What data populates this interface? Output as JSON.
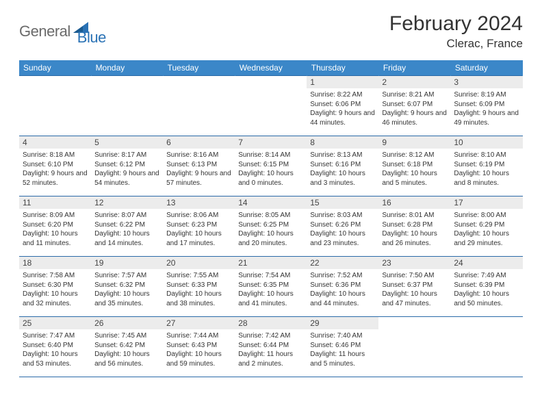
{
  "logo": {
    "text1": "General",
    "text2": "Blue"
  },
  "title": "February 2024",
  "location": "Clerac, France",
  "colors": {
    "header_bg": "#3b87c8",
    "header_text": "#ffffff",
    "border": "#2a6aa8",
    "daynum_bg": "#ececec",
    "logo_gray": "#6a6a6a",
    "logo_blue": "#2a72b5"
  },
  "weekdays": [
    "Sunday",
    "Monday",
    "Tuesday",
    "Wednesday",
    "Thursday",
    "Friday",
    "Saturday"
  ],
  "weeks": [
    [
      null,
      null,
      null,
      null,
      {
        "n": "1",
        "sr": "8:22 AM",
        "ss": "6:06 PM",
        "dl": "9 hours and 44 minutes."
      },
      {
        "n": "2",
        "sr": "8:21 AM",
        "ss": "6:07 PM",
        "dl": "9 hours and 46 minutes."
      },
      {
        "n": "3",
        "sr": "8:19 AM",
        "ss": "6:09 PM",
        "dl": "9 hours and 49 minutes."
      }
    ],
    [
      {
        "n": "4",
        "sr": "8:18 AM",
        "ss": "6:10 PM",
        "dl": "9 hours and 52 minutes."
      },
      {
        "n": "5",
        "sr": "8:17 AM",
        "ss": "6:12 PM",
        "dl": "9 hours and 54 minutes."
      },
      {
        "n": "6",
        "sr": "8:16 AM",
        "ss": "6:13 PM",
        "dl": "9 hours and 57 minutes."
      },
      {
        "n": "7",
        "sr": "8:14 AM",
        "ss": "6:15 PM",
        "dl": "10 hours and 0 minutes."
      },
      {
        "n": "8",
        "sr": "8:13 AM",
        "ss": "6:16 PM",
        "dl": "10 hours and 3 minutes."
      },
      {
        "n": "9",
        "sr": "8:12 AM",
        "ss": "6:18 PM",
        "dl": "10 hours and 5 minutes."
      },
      {
        "n": "10",
        "sr": "8:10 AM",
        "ss": "6:19 PM",
        "dl": "10 hours and 8 minutes."
      }
    ],
    [
      {
        "n": "11",
        "sr": "8:09 AM",
        "ss": "6:20 PM",
        "dl": "10 hours and 11 minutes."
      },
      {
        "n": "12",
        "sr": "8:07 AM",
        "ss": "6:22 PM",
        "dl": "10 hours and 14 minutes."
      },
      {
        "n": "13",
        "sr": "8:06 AM",
        "ss": "6:23 PM",
        "dl": "10 hours and 17 minutes."
      },
      {
        "n": "14",
        "sr": "8:05 AM",
        "ss": "6:25 PM",
        "dl": "10 hours and 20 minutes."
      },
      {
        "n": "15",
        "sr": "8:03 AM",
        "ss": "6:26 PM",
        "dl": "10 hours and 23 minutes."
      },
      {
        "n": "16",
        "sr": "8:01 AM",
        "ss": "6:28 PM",
        "dl": "10 hours and 26 minutes."
      },
      {
        "n": "17",
        "sr": "8:00 AM",
        "ss": "6:29 PM",
        "dl": "10 hours and 29 minutes."
      }
    ],
    [
      {
        "n": "18",
        "sr": "7:58 AM",
        "ss": "6:30 PM",
        "dl": "10 hours and 32 minutes."
      },
      {
        "n": "19",
        "sr": "7:57 AM",
        "ss": "6:32 PM",
        "dl": "10 hours and 35 minutes."
      },
      {
        "n": "20",
        "sr": "7:55 AM",
        "ss": "6:33 PM",
        "dl": "10 hours and 38 minutes."
      },
      {
        "n": "21",
        "sr": "7:54 AM",
        "ss": "6:35 PM",
        "dl": "10 hours and 41 minutes."
      },
      {
        "n": "22",
        "sr": "7:52 AM",
        "ss": "6:36 PM",
        "dl": "10 hours and 44 minutes."
      },
      {
        "n": "23",
        "sr": "7:50 AM",
        "ss": "6:37 PM",
        "dl": "10 hours and 47 minutes."
      },
      {
        "n": "24",
        "sr": "7:49 AM",
        "ss": "6:39 PM",
        "dl": "10 hours and 50 minutes."
      }
    ],
    [
      {
        "n": "25",
        "sr": "7:47 AM",
        "ss": "6:40 PM",
        "dl": "10 hours and 53 minutes."
      },
      {
        "n": "26",
        "sr": "7:45 AM",
        "ss": "6:42 PM",
        "dl": "10 hours and 56 minutes."
      },
      {
        "n": "27",
        "sr": "7:44 AM",
        "ss": "6:43 PM",
        "dl": "10 hours and 59 minutes."
      },
      {
        "n": "28",
        "sr": "7:42 AM",
        "ss": "6:44 PM",
        "dl": "11 hours and 2 minutes."
      },
      {
        "n": "29",
        "sr": "7:40 AM",
        "ss": "6:46 PM",
        "dl": "11 hours and 5 minutes."
      },
      null,
      null
    ]
  ],
  "labels": {
    "sunrise": "Sunrise: ",
    "sunset": "Sunset: ",
    "daylight": "Daylight: "
  }
}
